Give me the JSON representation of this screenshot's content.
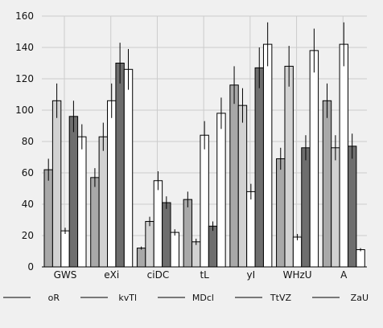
{
  "chart_data": {
    "type": "bar",
    "categories": [
      "GWS",
      "eXi",
      "ciDC",
      "tL",
      "yI",
      "WHzU",
      "A"
    ],
    "series": [
      {
        "name": "oR",
        "color": "#a8a8a8",
        "values": [
          62,
          57,
          12,
          43,
          116,
          69,
          106
        ],
        "errors": [
          7,
          6,
          1,
          5,
          12,
          7,
          11
        ]
      },
      {
        "name": "kvTl",
        "color": "#d2d2d2",
        "values": [
          106,
          83,
          29,
          16,
          103,
          128,
          76
        ],
        "errors": [
          11,
          9,
          3,
          2,
          11,
          13,
          8
        ]
      },
      {
        "name": "MDcl",
        "color": "#ffffff",
        "values": [
          23,
          106,
          55,
          84,
          48,
          19,
          142
        ],
        "errors": [
          2,
          11,
          6,
          9,
          5,
          2,
          14
        ]
      },
      {
        "name": "TtVZ",
        "color": "#6e6e6e",
        "values": [
          96,
          130,
          41,
          26,
          127,
          76,
          77
        ],
        "errors": [
          10,
          13,
          4,
          3,
          13,
          8,
          8
        ]
      },
      {
        "name": "ZaU",
        "color": "#ffffff",
        "values": [
          83,
          126,
          22,
          98,
          142,
          138,
          11
        ],
        "errors": [
          8,
          13,
          2,
          10,
          14,
          14,
          1
        ]
      }
    ],
    "ylim": [
      0,
      160
    ],
    "yticks": [
      "0",
      "20",
      "40",
      "60",
      "80",
      "100",
      "120",
      "140",
      "160"
    ],
    "grid": true,
    "legend_position": "bottom"
  }
}
